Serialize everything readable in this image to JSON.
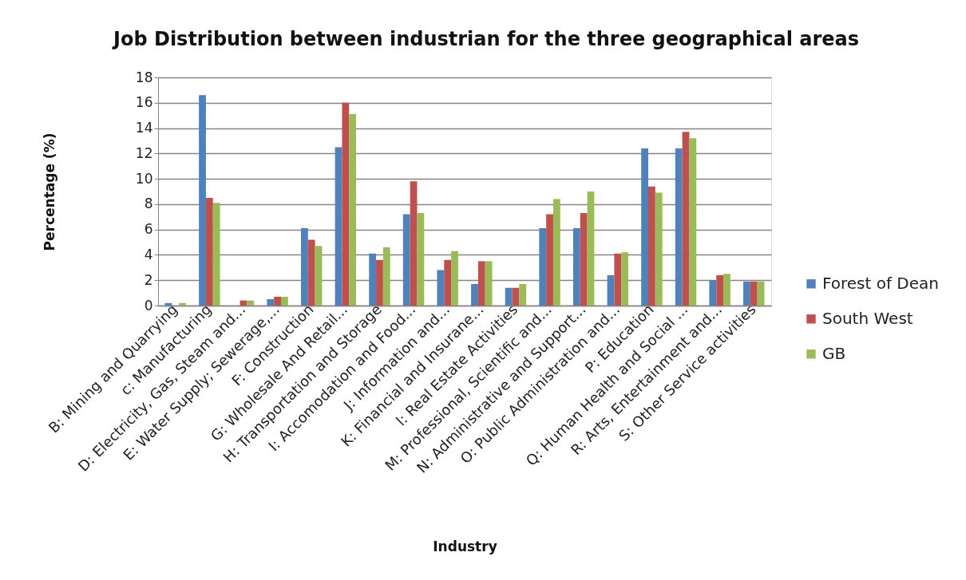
{
  "chart_data": {
    "type": "bar",
    "title": "Job Distribution between industrian for the three geographical areas",
    "xlabel": "Industry",
    "ylabel": "Percentage (%)",
    "categories": [
      "B: Mining and Quarrying",
      "c: Manufacturing",
      "D: Electricity, Gas, Steam and...",
      "E: Water Supply; Sewerage,...",
      "F: Construction",
      "G: Wholesale And Retail...",
      "H: Transportation and Storage",
      "I: Accomodation and Food...",
      "J: Information and...",
      "K: Financial and Insurane...",
      "l: Real Estate Activities",
      "M: Professional, Scientific and...",
      "N: Administrative and Support...",
      "O: Public Administration and...",
      "P: Education",
      "Q: Human Health and Social ...",
      "R: Arts, Entertainment and...",
      "S: Other Service activities"
    ],
    "series": [
      {
        "name": "Forest of Dean",
        "color": "#4f81bd",
        "values": [
          0.2,
          16.6,
          null,
          0.5,
          6.1,
          12.5,
          4.1,
          7.2,
          2.8,
          1.7,
          1.4,
          6.1,
          6.1,
          2.4,
          12.4,
          12.4,
          2.0,
          1.9
        ]
      },
      {
        "name": "South West",
        "color": "#c0504d",
        "values": [
          null,
          8.5,
          0.4,
          0.7,
          5.2,
          16.0,
          3.6,
          9.8,
          3.6,
          3.5,
          1.4,
          7.2,
          7.3,
          4.1,
          9.4,
          13.7,
          2.4,
          1.9
        ]
      },
      {
        "name": "GB",
        "color": "#9bbb59",
        "values": [
          0.2,
          8.1,
          0.4,
          0.7,
          4.7,
          15.1,
          4.6,
          7.3,
          4.3,
          3.5,
          1.7,
          8.4,
          9.0,
          4.2,
          8.9,
          13.2,
          2.5,
          1.9
        ]
      }
    ],
    "ylim": [
      0,
      18
    ],
    "yticks": [
      0,
      2,
      4,
      6,
      8,
      10,
      12,
      14,
      16,
      18
    ],
    "grid": "y",
    "legend": "right"
  }
}
